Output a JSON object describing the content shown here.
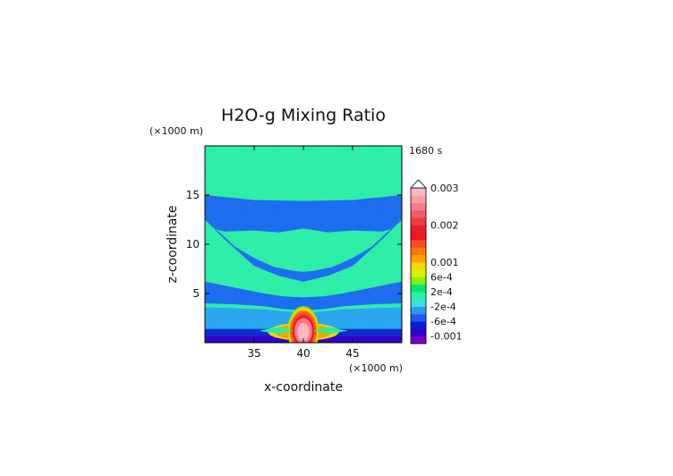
{
  "chart_data": {
    "type": "heatmap",
    "title": "H2O-g Mixing Ratio",
    "time_label": "1680 s",
    "xlabel": "x-coordinate",
    "ylabel": "z-coordinate",
    "x_unit": "(×1000 m)",
    "y_unit": "(×1000 m)",
    "xlim": [
      30,
      50
    ],
    "ylim": [
      0,
      20
    ],
    "x_ticks": [
      35,
      40,
      45
    ],
    "y_ticks": [
      5,
      10,
      15
    ],
    "colorbar": {
      "labels": [
        "0.003",
        "0.002",
        "0.001",
        "6e-4",
        "2e-4",
        "-2e-4",
        "-6e-4",
        "-0.001"
      ],
      "label_values": [
        0.003,
        0.002,
        0.001,
        0.0006,
        0.0002,
        -0.0002,
        -0.0006,
        -0.001
      ],
      "extend_top": true,
      "colors": [
        "#7a00c8",
        "#3300c8",
        "#0a1ed8",
        "#1f5af0",
        "#2b9bf2",
        "#3ddde0",
        "#28f0a0",
        "#00e86c",
        "#88f000",
        "#d8f000",
        "#f6d800",
        "#ffa000",
        "#ff7800",
        "#ff4a2a",
        "#f01818",
        "#e8202a",
        "#ee3c44",
        "#f45a66",
        "#f87c88",
        "#fb9ea8",
        "#ffb8c0"
      ]
    },
    "fields": {
      "background_value": -0.0001,
      "top_layer_value": 0.0001,
      "mid_band_value": -0.0002,
      "ground_layer_value": -0.0006,
      "core_value": 0.0028
    }
  }
}
